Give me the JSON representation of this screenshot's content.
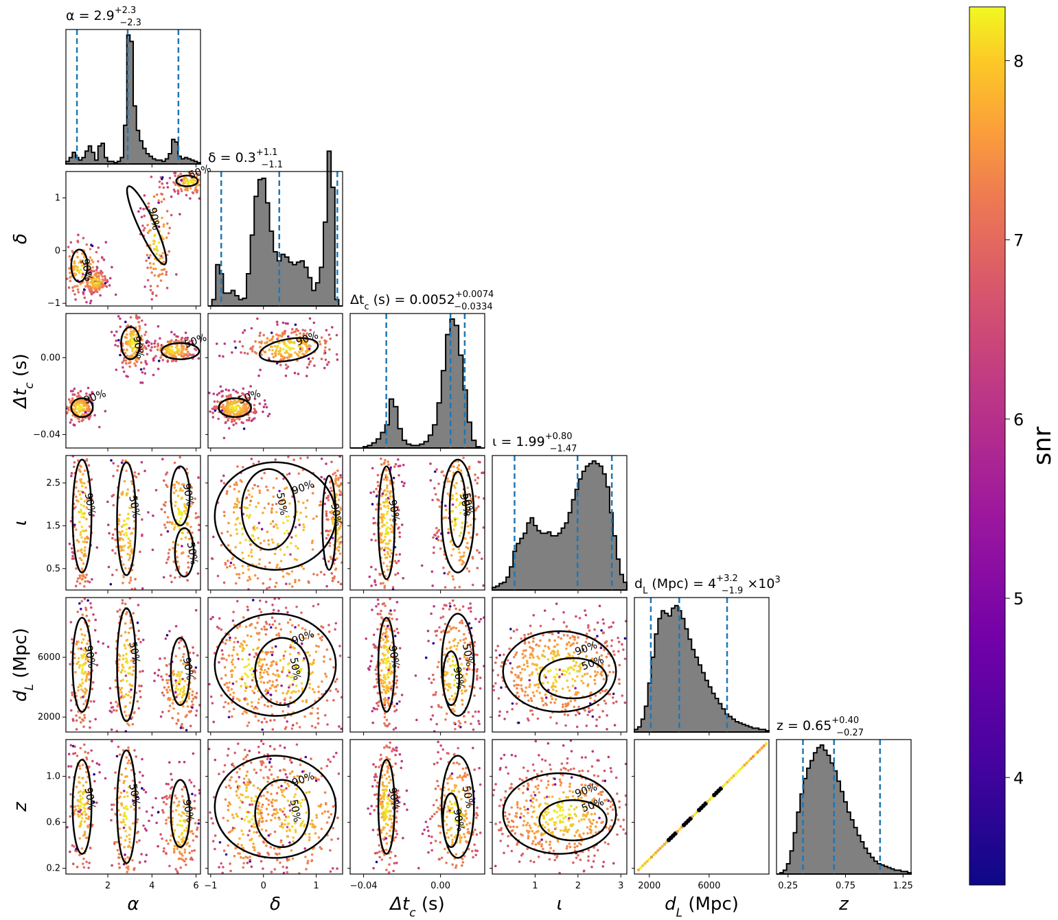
{
  "chart_data": {
    "type": "scatter",
    "subtype": "corner-plot",
    "parameters": [
      {
        "key": "alpha",
        "range": [
          0.1,
          6.2
        ],
        "ticks": [
          2,
          4,
          6
        ],
        "tick_labels": [
          "2",
          "4",
          "6"
        ],
        "median": 2.9,
        "lower": 0.6,
        "upper": 5.2,
        "title_html": "α = 2.9<tspan dy=\"-10\" font-size=\"13\">+2.3</tspan><tspan dx=\"-24\" dy=\"18\" font-size=\"13\">−2.3</tspan>"
      },
      {
        "key": "delta",
        "range": [
          -1.05,
          1.5
        ],
        "ticks": [
          -1,
          0,
          1
        ],
        "tick_labels": [
          "−1",
          "0",
          "1"
        ],
        "median": 0.3,
        "lower": -0.8,
        "upper": 1.4,
        "title_html": "δ = 0.3<tspan dy=\"-10\" font-size=\"13\">+1.1</tspan><tspan dx=\"-24\" dy=\"18\" font-size=\"13\">−1.1</tspan>"
      },
      {
        "key": "dtc",
        "range": [
          -0.047,
          0.023
        ],
        "ticks": [
          -0.04,
          0.0
        ],
        "tick_labels": [
          "−0.04",
          "0.00"
        ],
        "median": 0.0052,
        "lower": -0.0282,
        "upper": 0.0126,
        "title_html": "Δt<tspan baseline-shift=\"sub\" font-size=\"13\">c</tspan> (s) = 0.0052<tspan dy=\"-10\" font-size=\"13\">+0.0074</tspan><tspan dx=\"-58\" dy=\"18\" font-size=\"13\">−0.0334</tspan>"
      },
      {
        "key": "iota",
        "range": [
          0.0,
          3.14
        ],
        "ticks": [
          1,
          2,
          3
        ],
        "tick_labels": [
          "1",
          "2",
          "3"
        ],
        "median": 1.99,
        "lower": 0.52,
        "upper": 2.79,
        "title_html": "ι = 1.99<tspan dy=\"-10\" font-size=\"13\">+0.80</tspan><tspan dx=\"-33\" dy=\"18\" font-size=\"13\">−1.47</tspan>"
      },
      {
        "key": "dL",
        "range": [
          1000,
          10000
        ],
        "ticks": [
          2000,
          6000
        ],
        "tick_labels": [
          "2000",
          "6000"
        ],
        "median": 4000,
        "lower": 2100,
        "upper": 7200,
        "title_html": "d<tspan baseline-shift=\"sub\" font-size=\"13\">L</tspan> (Mpc) = 4<tspan dy=\"-10\" font-size=\"13\">+3.2</tspan><tspan dx=\"-24\" dy=\"18\" font-size=\"13\">−1.9</tspan><tspan dy=\"-8\"> ×10</tspan><tspan dy=\"-8\" font-size=\"13\">3</tspan>"
      },
      {
        "key": "z",
        "range": [
          0.15,
          1.32
        ],
        "ticks": [
          0.25,
          0.75,
          1.25
        ],
        "tick_labels": [
          "0.25",
          "0.75",
          "1.25"
        ],
        "median": 0.65,
        "lower": 0.38,
        "upper": 1.05,
        "title_html": "z = 0.65<tspan dy=\"-10\" font-size=\"13\">+0.40</tspan><tspan dx=\"-33\" dy=\"18\" font-size=\"13\">−0.27</tspan>"
      }
    ],
    "axis_labels": [
      {
        "main": "α",
        "sub": "",
        "tail": ""
      },
      {
        "main": "δ",
        "sub": "",
        "tail": ""
      },
      {
        "main": "Δt",
        "sub": "c",
        "tail": " (s)"
      },
      {
        "main": "ι",
        "sub": "",
        "tail": ""
      },
      {
        "main": "d",
        "sub": "L",
        "tail": " (Mpc)"
      },
      {
        "main": "z",
        "sub": "",
        "tail": ""
      }
    ],
    "y_axis_ticks": [
      null,
      {
        "ticks": [
          -1,
          0,
          1
        ],
        "labels": [
          "−1",
          "0",
          "1"
        ]
      },
      {
        "ticks": [
          -0.04,
          0.0
        ],
        "labels": [
          "−0.04",
          "0.00"
        ]
      },
      {
        "ticks": [
          0.5,
          1.5,
          2.5
        ],
        "labels": [
          "0.5",
          "1.5",
          "2.5"
        ]
      },
      {
        "ticks": [
          2000,
          6000
        ],
        "labels": [
          "2000",
          "6000"
        ]
      },
      {
        "ticks": [
          0.2,
          0.6,
          1.0
        ],
        "labels": [
          "0.2",
          "0.6",
          "1.0"
        ]
      }
    ],
    "x_axis_ticks": [
      {
        "ticks": [
          2,
          4,
          6
        ],
        "labels": [
          "2",
          "4",
          "6"
        ]
      },
      {
        "ticks": [
          -1,
          0,
          1
        ],
        "labels": [
          "−1",
          "0",
          "1"
        ]
      },
      {
        "ticks": [
          -0.04,
          0.0
        ],
        "labels": [
          "−0.04",
          "0.00"
        ]
      },
      {
        "ticks": [
          1,
          2,
          3
        ],
        "labels": [
          "1",
          "2",
          "3"
        ]
      },
      {
        "ticks": [
          2000,
          6000
        ],
        "labels": [
          "2000",
          "6000"
        ]
      },
      {
        "ticks": [
          0.25,
          0.75,
          1.25
        ],
        "labels": [
          "0.25",
          "0.75",
          "1.25"
        ]
      }
    ],
    "histograms": [
      [
        0.02,
        0.05,
        0.09,
        0.05,
        0.03,
        0.05,
        0.1,
        0.14,
        0.09,
        0.03,
        0.14,
        0.16,
        0.05,
        0.02,
        0.02,
        0.01,
        0.02,
        0.05,
        0.3,
        1.0,
        0.95,
        0.45,
        0.26,
        0.18,
        0.12,
        0.08,
        0.06,
        0.04,
        0.03,
        0.03,
        0.02,
        0.04,
        0.08,
        0.19,
        0.17,
        0.06,
        0.04,
        0.05,
        0.04,
        0.03,
        0.02,
        0.01
      ],
      [
        0.0,
        0.05,
        0.32,
        0.25,
        0.1,
        0.1,
        0.12,
        0.08,
        0.05,
        0.06,
        0.25,
        0.55,
        0.85,
        0.98,
        0.99,
        0.8,
        0.58,
        0.42,
        0.35,
        0.4,
        0.38,
        0.34,
        0.32,
        0.34,
        0.35,
        0.3,
        0.22,
        0.12,
        0.18,
        0.3,
        0.65,
        1.2,
        0.92,
        0.05,
        0.0
      ],
      [
        0.0,
        0.0,
        0.0,
        0.01,
        0.02,
        0.04,
        0.07,
        0.12,
        0.18,
        0.38,
        0.32,
        0.15,
        0.06,
        0.03,
        0.02,
        0.02,
        0.03,
        0.05,
        0.1,
        0.18,
        0.35,
        0.6,
        0.88,
        1.0,
        0.95,
        0.72,
        0.45,
        0.2,
        0.06,
        0.01,
        0.0
      ],
      [
        0.02,
        0.03,
        0.05,
        0.06,
        0.1,
        0.18,
        0.3,
        0.36,
        0.4,
        0.44,
        0.52,
        0.56,
        0.5,
        0.46,
        0.44,
        0.44,
        0.45,
        0.42,
        0.42,
        0.44,
        0.48,
        0.52,
        0.6,
        0.7,
        0.78,
        0.86,
        0.92,
        0.96,
        0.98,
        1.0,
        0.98,
        0.96,
        0.9,
        0.8,
        0.6,
        0.42,
        0.24,
        0.12,
        0.06
      ],
      [
        0.02,
        0.04,
        0.1,
        0.2,
        0.38,
        0.58,
        0.76,
        0.88,
        0.94,
        0.92,
        0.9,
        0.96,
        0.98,
        0.94,
        0.88,
        0.8,
        0.72,
        0.64,
        0.58,
        0.52,
        0.46,
        0.4,
        0.35,
        0.3,
        0.26,
        0.22,
        0.18,
        0.14,
        0.12,
        0.1,
        0.08,
        0.07,
        0.06,
        0.05,
        0.04,
        0.03,
        0.03,
        0.02,
        0.02,
        0.01
      ],
      [
        0.0,
        0.01,
        0.03,
        0.08,
        0.18,
        0.32,
        0.48,
        0.62,
        0.74,
        0.82,
        0.88,
        0.94,
        0.98,
        1.0,
        0.96,
        0.92,
        0.86,
        0.8,
        0.72,
        0.64,
        0.56,
        0.48,
        0.42,
        0.36,
        0.3,
        0.25,
        0.2,
        0.16,
        0.13,
        0.1,
        0.08,
        0.07,
        0.06,
        0.05,
        0.04,
        0.03,
        0.03,
        0.02,
        0.02,
        0.01
      ]
    ],
    "colorbar": {
      "label": "snr",
      "range": [
        3.4,
        8.3
      ],
      "ticks": [
        4,
        5,
        6,
        7,
        8
      ],
      "tick_labels": [
        "4",
        "5",
        "6",
        "7",
        "8"
      ],
      "colormap": "plasma"
    },
    "contour_labels": [
      "50%",
      "90%"
    ],
    "colors": {
      "hist_fill": "#808080",
      "hist_edge": "#000000",
      "quantile_line": "#1f77b4",
      "contour": "#000000"
    }
  }
}
